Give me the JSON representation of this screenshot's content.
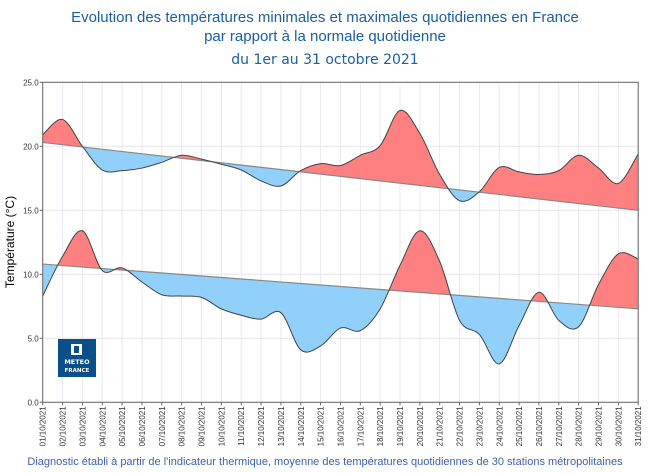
{
  "title_line1": "Evolution des températures minimales et maximales quotidiennes en France",
  "title_line2": "par rapport à la normale quotidienne",
  "subtitle": "du 1er au 31 octobre 2021",
  "footer": "Diagnostic établi à partir de l'indicateur thermique, moyenne des températures quotidiennes de 30 stations métropolitaines",
  "logo": {
    "line1": "METEO",
    "line2": "FRANCE",
    "color": "#0b4f8a"
  },
  "colors": {
    "above_normal": "#ff8080",
    "below_normal": "#90d0fa",
    "curve": "#444444",
    "normal": "#888888",
    "title": "#1a5ea3"
  },
  "chart_data": {
    "type": "area",
    "title": "Evolution des températures minimales et maximales quotidiennes en France par rapport à la normale quotidienne",
    "ylabel": "Température (°C)",
    "xlabel": "",
    "ylim": [
      0,
      25
    ],
    "yticks": [
      "0.0",
      "5.0",
      "10.0",
      "15.0",
      "20.0",
      "25.0"
    ],
    "grid": true,
    "categories": [
      "01/10/2021",
      "02/10/2021",
      "03/10/2021",
      "04/10/2021",
      "05/10/2021",
      "06/10/2021",
      "07/10/2021",
      "08/10/2021",
      "09/10/2021",
      "10/10/2021",
      "11/10/2021",
      "12/10/2021",
      "13/10/2021",
      "14/10/2021",
      "15/10/2021",
      "16/10/2021",
      "17/10/2021",
      "18/10/2021",
      "19/10/2021",
      "20/10/2021",
      "21/10/2021",
      "22/10/2021",
      "23/10/2021",
      "24/10/2021",
      "25/10/2021",
      "26/10/2021",
      "27/10/2021",
      "28/10/2021",
      "29/10/2021",
      "30/10/2021",
      "31/10/2021"
    ],
    "series": [
      {
        "kind": "max",
        "values": [
          20.9,
          22.1,
          20.0,
          18.15,
          18.1,
          18.3,
          18.75,
          19.3,
          19.0,
          18.6,
          18.15,
          17.3,
          16.9,
          18.1,
          18.65,
          18.5,
          19.3,
          20.05,
          22.8,
          21.0,
          17.8,
          15.75,
          16.45,
          18.35,
          18.0,
          17.8,
          18.1,
          19.3,
          18.3,
          17.1,
          19.4
        ],
        "normal": [
          20.3,
          15.0
        ]
      },
      {
        "kind": "min",
        "values": [
          8.3,
          11.4,
          13.4,
          10.3,
          10.5,
          9.4,
          8.4,
          8.3,
          8.2,
          7.3,
          6.8,
          6.5,
          7.0,
          4.1,
          4.4,
          5.8,
          5.6,
          7.3,
          10.7,
          13.4,
          11.0,
          6.4,
          5.3,
          3.0,
          6.0,
          8.6,
          6.4,
          5.9,
          9.2,
          11.6,
          11.2
        ],
        "normal": [
          10.8,
          7.3
        ]
      }
    ]
  }
}
